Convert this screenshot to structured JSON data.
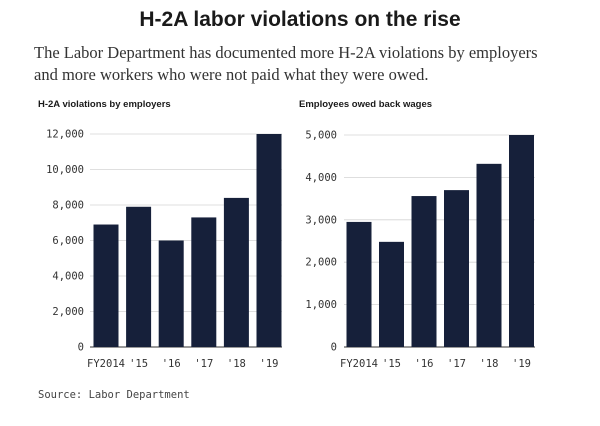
{
  "header": {
    "title": "H-2A labor violations on the rise",
    "subtitle_lines": [
      "The Labor Department has documented more H-2A violations by employers",
      "and more workers who were not paid what they were owed."
    ]
  },
  "source": "Source: Labor Department",
  "colors": {
    "bar": "#16203a",
    "grid": "#d4d4d4",
    "axis": "#333333"
  },
  "chart_data": [
    {
      "type": "bar",
      "title": "H-2A violations by employers",
      "categories": [
        "FY2014",
        "'15",
        "'16",
        "'17",
        "'18",
        "'19"
      ],
      "values": [
        6900,
        7900,
        6000,
        7300,
        8400,
        12000
      ],
      "ylim": [
        0,
        12000
      ],
      "yticks": [
        0,
        2000,
        4000,
        6000,
        8000,
        10000,
        12000
      ],
      "ytick_labels": [
        "0",
        "2,000",
        "4,000",
        "6,000",
        "8,000",
        "10,000",
        "12,000"
      ],
      "xlabel": "",
      "ylabel": "",
      "grid": true
    },
    {
      "type": "bar",
      "title": "Employees owed back wages",
      "categories": [
        "FY2014",
        "'15",
        "'16",
        "'17",
        "'18",
        "'19"
      ],
      "values": [
        2950,
        2480,
        3560,
        3700,
        4320,
        5000
      ],
      "ylim": [
        0,
        5000
      ],
      "yticks": [
        0,
        1000,
        2000,
        3000,
        4000,
        5000
      ],
      "ytick_labels": [
        "0",
        "1,000",
        "2,000",
        "3,000",
        "4,000",
        "5,000"
      ],
      "xlabel": "",
      "ylabel": "",
      "grid": true
    }
  ]
}
